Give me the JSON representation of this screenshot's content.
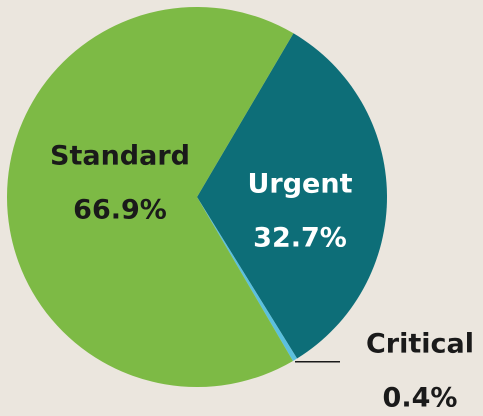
{
  "chart_data": {
    "type": "pie",
    "categories": [
      "Urgent",
      "Critical",
      "Standard"
    ],
    "values": [
      32.7,
      0.4,
      66.9
    ],
    "value_labels": [
      "32.7%",
      "0.4%",
      "66.9%"
    ],
    "colors": [
      "#0d6e78",
      "#5bc0de",
      "#7dba45"
    ]
  }
}
